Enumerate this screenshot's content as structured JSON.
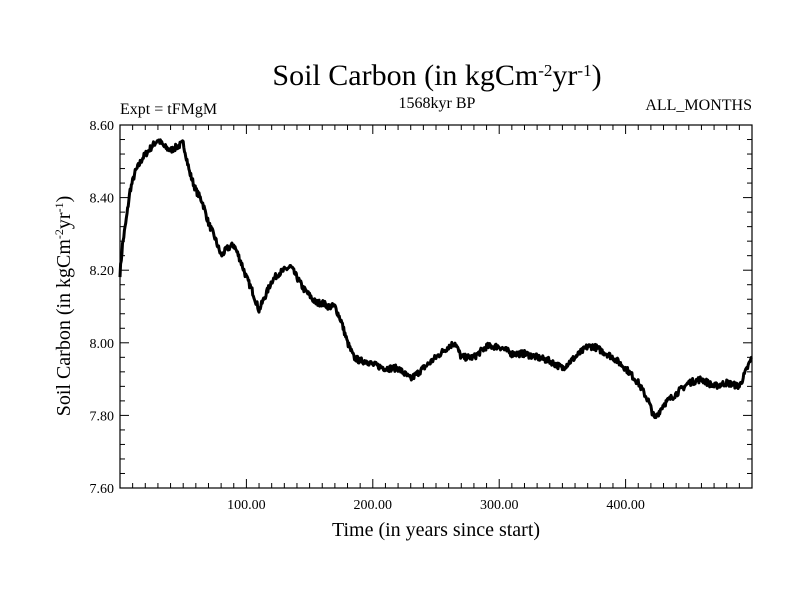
{
  "chart_data": {
    "type": "line",
    "title": {
      "main": "Soil Carbon (in kgCm",
      "sup1": "-2",
      "mid": "yr",
      "sup2": "-1",
      "end": ")"
    },
    "experiment": "Expt = tFMgM",
    "period": "1568kyr BP",
    "months": "ALL_MONTHS",
    "xlabel": "Time (in years since start)",
    "ylabel": {
      "main": "Soil Carbon (in kgCm",
      "sup1": "-2",
      "mid": "yr",
      "sup2": "-1",
      "end": ")"
    },
    "xlim": [
      0,
      500
    ],
    "ylim": [
      7.6,
      8.6
    ],
    "x_ticks": [
      100,
      200,
      300,
      400
    ],
    "x_tick_labels": [
      "100.00",
      "200.00",
      "300.00",
      "400.00"
    ],
    "y_ticks": [
      7.6,
      7.8,
      8.0,
      8.2,
      8.4,
      8.6
    ],
    "y_tick_labels": [
      "7.60",
      "7.80",
      "8.00",
      "8.20",
      "8.40",
      "8.60"
    ],
    "series": [
      {
        "name": "Soil Carbon",
        "x": [
          0,
          2,
          5,
          8,
          12,
          18,
          25,
          30,
          35,
          40,
          45,
          50,
          52,
          55,
          60,
          65,
          70,
          75,
          80,
          85,
          90,
          95,
          100,
          105,
          110,
          115,
          120,
          125,
          130,
          135,
          140,
          145,
          150,
          155,
          160,
          165,
          170,
          175,
          180,
          185,
          190,
          195,
          200,
          210,
          220,
          230,
          240,
          250,
          260,
          265,
          270,
          280,
          290,
          300,
          310,
          320,
          330,
          340,
          350,
          360,
          370,
          375,
          380,
          390,
          400,
          410,
          418,
          423,
          430,
          440,
          450,
          460,
          470,
          480,
          490,
          500
        ],
        "values": [
          8.19,
          8.27,
          8.34,
          8.42,
          8.47,
          8.51,
          8.54,
          8.56,
          8.54,
          8.53,
          8.54,
          8.55,
          8.52,
          8.47,
          8.42,
          8.39,
          8.33,
          8.29,
          8.24,
          8.26,
          8.27,
          8.23,
          8.18,
          8.14,
          8.09,
          8.13,
          8.17,
          8.19,
          8.2,
          8.21,
          8.18,
          8.15,
          8.13,
          8.11,
          8.11,
          8.1,
          8.1,
          8.06,
          8.0,
          7.96,
          7.95,
          7.95,
          7.94,
          7.93,
          7.93,
          7.9,
          7.93,
          7.96,
          7.99,
          8.0,
          7.96,
          7.96,
          7.99,
          7.99,
          7.97,
          7.97,
          7.96,
          7.95,
          7.93,
          7.96,
          7.99,
          7.99,
          7.98,
          7.96,
          7.93,
          7.89,
          7.84,
          7.79,
          7.83,
          7.86,
          7.89,
          7.9,
          7.88,
          7.89,
          7.88,
          7.96
        ]
      }
    ]
  },
  "colors": {
    "line": "#000000",
    "background": "#ffffff",
    "axis": "#000000"
  }
}
